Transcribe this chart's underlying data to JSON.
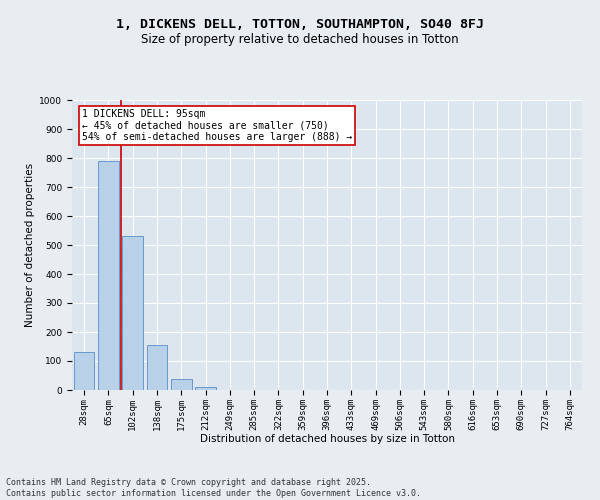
{
  "title_line1": "1, DICKENS DELL, TOTTON, SOUTHAMPTON, SO40 8FJ",
  "title_line2": "Size of property relative to detached houses in Totton",
  "xlabel": "Distribution of detached houses by size in Totton",
  "ylabel": "Number of detached properties",
  "categories": [
    "28sqm",
    "65sqm",
    "102sqm",
    "138sqm",
    "175sqm",
    "212sqm",
    "249sqm",
    "285sqm",
    "322sqm",
    "359sqm",
    "396sqm",
    "433sqm",
    "469sqm",
    "506sqm",
    "543sqm",
    "580sqm",
    "616sqm",
    "653sqm",
    "690sqm",
    "727sqm",
    "764sqm"
  ],
  "values": [
    130,
    790,
    530,
    155,
    38,
    12,
    0,
    0,
    0,
    0,
    0,
    0,
    0,
    0,
    0,
    0,
    0,
    0,
    0,
    0,
    0
  ],
  "bar_color": "#b8d0e8",
  "bar_edge_color": "#6699cc",
  "vline_color": "#cc0000",
  "vline_x_index": 1.5,
  "annotation_text": "1 DICKENS DELL: 95sqm\n← 45% of detached houses are smaller (750)\n54% of semi-detached houses are larger (888) →",
  "annotation_box_color": "#ffffff",
  "annotation_box_edge_color": "#cc0000",
  "ylim": [
    0,
    1000
  ],
  "yticks": [
    0,
    100,
    200,
    300,
    400,
    500,
    600,
    700,
    800,
    900,
    1000
  ],
  "bg_color": "#e8edf2",
  "plot_bg_color": "#dde6ef",
  "grid_color": "#ffffff",
  "footer_line1": "Contains HM Land Registry data © Crown copyright and database right 2025.",
  "footer_line2": "Contains public sector information licensed under the Open Government Licence v3.0.",
  "title1_fontsize": 9.5,
  "title2_fontsize": 8.5,
  "axis_label_fontsize": 7.5,
  "tick_fontsize": 6.5,
  "annotation_fontsize": 7,
  "footer_fontsize": 6
}
